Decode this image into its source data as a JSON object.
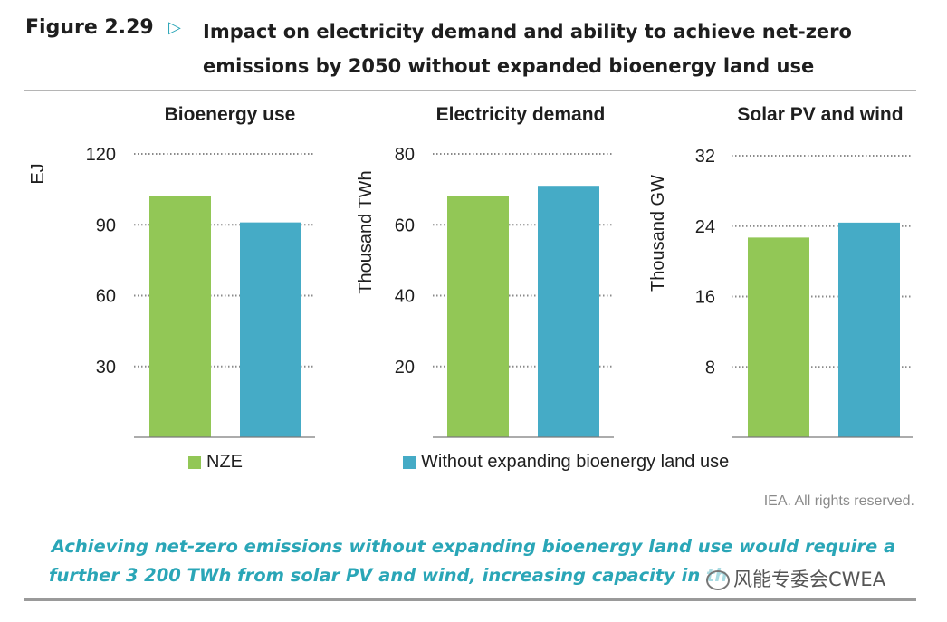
{
  "figure": {
    "label": "Figure 2.29",
    "arrow_icon": "triangle-right-outline-icon",
    "title_line1": "Impact on electricity demand and ability to achieve net-zero",
    "title_line2": "emissions by 2050 without expanded bioenergy land use"
  },
  "colors": {
    "nze": "#92c756",
    "without": "#45abc6",
    "accent": "#2aa6b7"
  },
  "chart_data": [
    {
      "type": "bar",
      "title": "Bioenergy use",
      "ylabel": "EJ",
      "ylim": [
        0,
        120
      ],
      "yticks": [
        30,
        60,
        90,
        120
      ],
      "grid": true,
      "series": [
        {
          "name": "NZE",
          "values": [
            102
          ]
        },
        {
          "name": "Without expanding bioenergy land use",
          "values": [
            91
          ]
        }
      ]
    },
    {
      "type": "bar",
      "title": "Electricity demand",
      "ylabel": "Thousand TWh",
      "ylim": [
        0,
        80
      ],
      "yticks": [
        20,
        40,
        60,
        80
      ],
      "grid": true,
      "series": [
        {
          "name": "NZE",
          "values": [
            68
          ]
        },
        {
          "name": "Without expanding bioenergy land use",
          "values": [
            71
          ]
        }
      ]
    },
    {
      "type": "bar",
      "title": "Solar PV and wind",
      "ylabel": "Thousand GW",
      "ylim": [
        0,
        32
      ],
      "yticks": [
        8,
        16,
        24,
        32
      ],
      "grid": true,
      "series": [
        {
          "name": "NZE",
          "values": [
            22.7
          ]
        },
        {
          "name": "Without expanding bioenergy land use",
          "values": [
            24.4
          ]
        }
      ]
    }
  ],
  "legend": {
    "placement": "bottom",
    "items": [
      {
        "label": "NZE"
      },
      {
        "label": "Without expanding bioenergy land use"
      }
    ]
  },
  "source": "IEA. All rights reserved.",
  "caption": {
    "line1": "Achieving net-zero emissions without expanding bioenergy land use would require a",
    "line2": "further 3 200 TWh from solar PV and wind, increasing capacity in th"
  },
  "watermark": "风能专委会CWEA"
}
